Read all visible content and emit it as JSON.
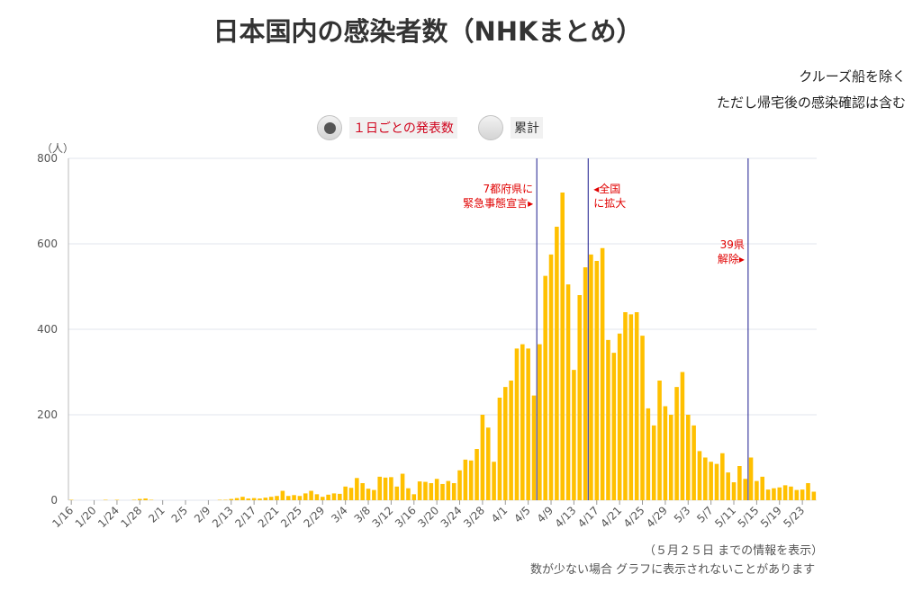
{
  "title": "日本国内の感染者数（NHKまとめ）",
  "notes": [
    "クルーズ船を除く",
    "ただし帰宅後の感染確認は含む"
  ],
  "toggles": {
    "daily": "１日ごとの発表数",
    "total": "累計",
    "selected": "daily"
  },
  "footer": [
    "（５月２５日 までの情報を表示）",
    "数が少ない場合 グラフに表示されないことがあります"
  ],
  "colors": {
    "bar": "#ffc000",
    "grid": "#e0e4ec",
    "event_line": "#1a1a8c",
    "annotation": "#e00000"
  },
  "chart_data": {
    "type": "bar",
    "ylabel": "（人）",
    "ylim": [
      0,
      800
    ],
    "yticks": [
      0,
      200,
      400,
      600,
      800
    ],
    "categories": [
      "1/16",
      "1/17",
      "1/18",
      "1/19",
      "1/20",
      "1/21",
      "1/22",
      "1/23",
      "1/24",
      "1/25",
      "1/26",
      "1/27",
      "1/28",
      "1/29",
      "1/30",
      "1/31",
      "2/1",
      "2/2",
      "2/3",
      "2/4",
      "2/5",
      "2/6",
      "2/7",
      "2/8",
      "2/9",
      "2/10",
      "2/11",
      "2/12",
      "2/13",
      "2/14",
      "2/15",
      "2/16",
      "2/17",
      "2/18",
      "2/19",
      "2/20",
      "2/21",
      "2/22",
      "2/23",
      "2/24",
      "2/25",
      "2/26",
      "2/27",
      "2/28",
      "2/29",
      "3/1",
      "3/2",
      "3/3",
      "3/4",
      "3/5",
      "3/6",
      "3/7",
      "3/8",
      "3/9",
      "3/10",
      "3/11",
      "3/12",
      "3/13",
      "3/14",
      "3/15",
      "3/16",
      "3/17",
      "3/18",
      "3/19",
      "3/20",
      "3/21",
      "3/22",
      "3/23",
      "3/24",
      "3/25",
      "3/26",
      "3/27",
      "3/28",
      "3/29",
      "3/30",
      "3/31",
      "4/1",
      "4/2",
      "4/3",
      "4/4",
      "4/5",
      "4/6",
      "4/7",
      "4/8",
      "4/9",
      "4/10",
      "4/11",
      "4/12",
      "4/13",
      "4/14",
      "4/15",
      "4/16",
      "4/17",
      "4/18",
      "4/19",
      "4/20",
      "4/21",
      "4/22",
      "4/23",
      "4/24",
      "4/25",
      "4/26",
      "4/27",
      "4/28",
      "4/29",
      "4/30",
      "5/1",
      "5/2",
      "5/3",
      "5/4",
      "5/5",
      "5/6",
      "5/7",
      "5/8",
      "5/9",
      "5/10",
      "5/11",
      "5/12",
      "5/13",
      "5/14",
      "5/15",
      "5/16",
      "5/17",
      "5/18",
      "5/19",
      "5/20",
      "5/21",
      "5/22",
      "5/23",
      "5/24",
      "5/25"
    ],
    "xtick_labels": [
      "1/16",
      "1/20",
      "1/24",
      "1/28",
      "2/1",
      "2/5",
      "2/9",
      "2/13",
      "2/17",
      "2/21",
      "2/25",
      "2/29",
      "3/4",
      "3/8",
      "3/12",
      "3/16",
      "3/20",
      "3/24",
      "3/28",
      "4/1",
      "4/5",
      "4/9",
      "4/13",
      "4/17",
      "4/21",
      "4/25",
      "4/29",
      "5/3",
      "5/7",
      "5/11",
      "5/15",
      "5/19",
      "5/23"
    ],
    "values": [
      1,
      0,
      0,
      0,
      0,
      0,
      1,
      0,
      1,
      0,
      0,
      1,
      3,
      4,
      1,
      0,
      0,
      0,
      0,
      0,
      0,
      0,
      0,
      0,
      0,
      0,
      1,
      1,
      3,
      5,
      8,
      4,
      5,
      4,
      6,
      8,
      10,
      22,
      10,
      12,
      10,
      16,
      22,
      14,
      8,
      13,
      16,
      15,
      32,
      29,
      52,
      40,
      27,
      24,
      55,
      53,
      54,
      32,
      62,
      28,
      14,
      44,
      43,
      40,
      50,
      38,
      45,
      40,
      70,
      95,
      93,
      120,
      200,
      170,
      90,
      240,
      265,
      280,
      355,
      365,
      355,
      245,
      365,
      525,
      575,
      640,
      720,
      505,
      305,
      480,
      545,
      575,
      560,
      590,
      375,
      345,
      390,
      440,
      435,
      440,
      385,
      215,
      175,
      280,
      220,
      200,
      265,
      300,
      200,
      175,
      115,
      100,
      90,
      85,
      110,
      65,
      42,
      80,
      50,
      100,
      45,
      55,
      25,
      28,
      30,
      35,
      32,
      24,
      25,
      40,
      20
    ],
    "events": [
      {
        "date": "4/7",
        "label": [
          "7都府県に",
          "緊急事態宣言▸"
        ],
        "side": "left",
        "value_pos": 720
      },
      {
        "date": "4/16",
        "label": [
          "◂全国",
          "に拡大"
        ],
        "side": "right",
        "value_pos": 720
      },
      {
        "date": "5/14",
        "label": [
          "39県",
          "解除▸"
        ],
        "side": "left",
        "value_pos": 590
      }
    ]
  }
}
